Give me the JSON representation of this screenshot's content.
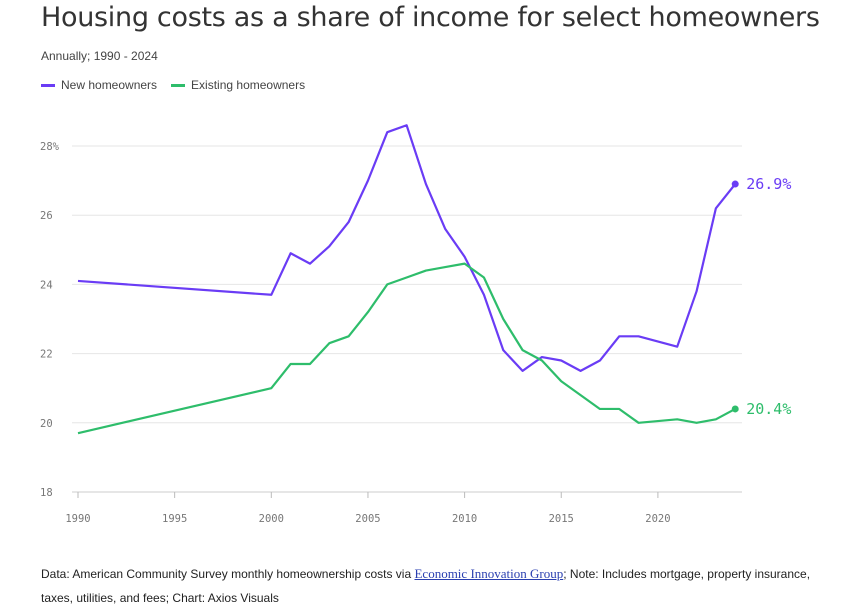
{
  "chart_data": {
    "type": "line",
    "title": "Housing costs as a share of income for select homeowners",
    "subtitle": "Annually; 1990 - 2024",
    "xlim": [
      1990,
      2024
    ],
    "ylim": [
      18,
      28.8
    ],
    "x_ticks": [
      1990,
      1995,
      2000,
      2005,
      2010,
      2015,
      2020
    ],
    "y_ticks": [
      18,
      20,
      22,
      24,
      26,
      28
    ],
    "y_tick_labels": [
      "18",
      "20",
      "22",
      "24",
      "26",
      "28%"
    ],
    "grid": "horizontal",
    "legend_position": "top-left",
    "series": [
      {
        "name": "New homeowners",
        "color": "#6a3cf5",
        "end_label": "26.9%",
        "x": [
          1990,
          2000,
          2001,
          2002,
          2003,
          2004,
          2005,
          2006,
          2007,
          2008,
          2009,
          2010,
          2011,
          2012,
          2013,
          2014,
          2015,
          2016,
          2017,
          2018,
          2019,
          2021,
          2022,
          2023,
          2024
        ],
        "values": [
          24.1,
          23.7,
          24.9,
          24.6,
          25.1,
          25.8,
          27.0,
          28.4,
          28.6,
          26.9,
          25.6,
          24.8,
          23.7,
          22.1,
          21.5,
          21.9,
          21.8,
          21.5,
          21.8,
          22.5,
          22.5,
          22.2,
          23.8,
          26.2,
          26.9
        ]
      },
      {
        "name": "Existing homeowners",
        "color": "#2ebd6b",
        "end_label": "20.4%",
        "x": [
          1990,
          2000,
          2001,
          2002,
          2003,
          2004,
          2005,
          2006,
          2007,
          2008,
          2009,
          2010,
          2011,
          2012,
          2013,
          2014,
          2015,
          2016,
          2017,
          2018,
          2019,
          2021,
          2022,
          2023,
          2024
        ],
        "values": [
          19.7,
          21.0,
          21.7,
          21.7,
          22.3,
          22.5,
          23.2,
          24.0,
          24.2,
          24.4,
          24.5,
          24.6,
          24.2,
          23.0,
          22.1,
          21.8,
          21.2,
          20.8,
          20.4,
          20.4,
          20.0,
          20.1,
          20.0,
          20.1,
          20.4
        ]
      }
    ]
  },
  "footer": {
    "prefix": "Data: American Community Survey monthly homeownership costs via ",
    "link": "Economic Innovation Group",
    "suffix": "; Note: Includes mortgage, property insurance, taxes, utilities, and fees; Chart: Axios Visuals"
  }
}
